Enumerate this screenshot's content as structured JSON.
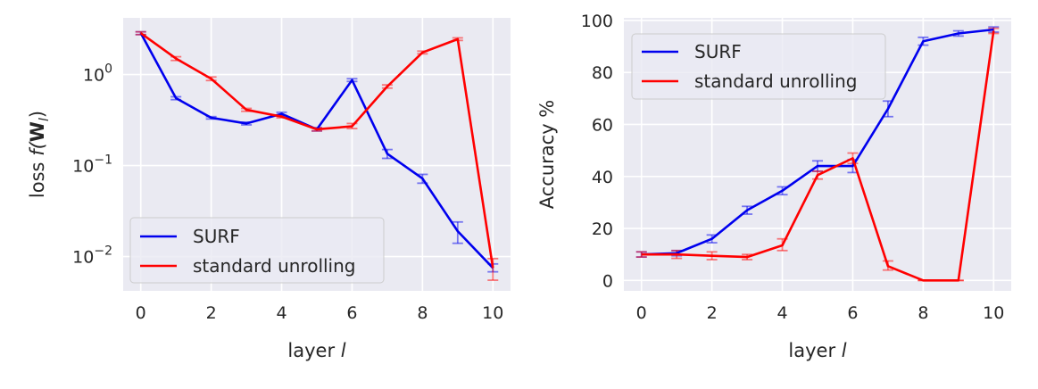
{
  "chart_data": [
    {
      "type": "line",
      "xlabel": "layer",
      "xlabel_var": "l",
      "ylabel": "loss",
      "ylabel_fn": "f(",
      "ylabel_bold": "W",
      "ylabel_sub": "l",
      "ylabel_close": ")",
      "yscale": "log",
      "xlim": [
        -0.5,
        10.5
      ],
      "ylim": [
        0.0042,
        4.2
      ],
      "x_ticks": [
        0,
        2,
        4,
        6,
        8,
        10
      ],
      "x_tick_labels": [
        "0",
        "2",
        "4",
        "6",
        "8",
        "10"
      ],
      "y_ticks": [
        1,
        0.1,
        0.01
      ],
      "y_tick_base": [
        "10",
        "10",
        "10"
      ],
      "y_tick_exp": [
        "0",
        "−1",
        "−2"
      ],
      "grid": true,
      "legend_loc": "lower-left",
      "x": [
        0,
        1,
        2,
        3,
        4,
        5,
        6,
        7,
        8,
        9,
        10
      ],
      "series": [
        {
          "name": "SURF",
          "color": "#0000ee",
          "values": [
            2.85,
            0.55,
            0.335,
            0.29,
            0.37,
            0.25,
            0.87,
            0.135,
            0.072,
            0.019,
            0.0075
          ],
          "err_low": [
            2.75,
            0.53,
            0.325,
            0.28,
            0.355,
            0.24,
            0.84,
            0.12,
            0.064,
            0.014,
            0.0068
          ],
          "err_high": [
            2.95,
            0.57,
            0.345,
            0.3,
            0.385,
            0.26,
            0.9,
            0.15,
            0.08,
            0.024,
            0.0083
          ]
        },
        {
          "name": "standard unrolling",
          "color": "#ff0000",
          "values": [
            2.85,
            1.5,
            0.9,
            0.41,
            0.345,
            0.25,
            0.27,
            0.74,
            1.75,
            2.45,
            0.0075
          ],
          "err_low": [
            2.75,
            1.43,
            0.86,
            0.395,
            0.335,
            0.24,
            0.255,
            0.71,
            1.69,
            2.37,
            0.0055
          ],
          "err_high": [
            2.95,
            1.57,
            0.94,
            0.425,
            0.355,
            0.26,
            0.29,
            0.77,
            1.81,
            2.53,
            0.0095
          ]
        }
      ]
    },
    {
      "type": "line",
      "xlabel": "layer",
      "xlabel_var": "l",
      "ylabel": "Accuracy %",
      "yscale": "linear",
      "xlim": [
        -0.5,
        10.5
      ],
      "ylim": [
        -4,
        101
      ],
      "x_ticks": [
        0,
        2,
        4,
        6,
        8,
        10
      ],
      "x_tick_labels": [
        "0",
        "2",
        "4",
        "6",
        "8",
        "10"
      ],
      "y_ticks": [
        0,
        20,
        40,
        60,
        80,
        100
      ],
      "y_tick_labels": [
        "0",
        "20",
        "40",
        "60",
        "80",
        "100"
      ],
      "grid": true,
      "legend_loc": "upper-left",
      "x": [
        0,
        1,
        2,
        3,
        4,
        5,
        6,
        7,
        8,
        9,
        10
      ],
      "series": [
        {
          "name": "SURF",
          "color": "#0000ee",
          "values": [
            10,
            10.5,
            16,
            27,
            34.5,
            44,
            44,
            66,
            92,
            95,
            96.5
          ],
          "err_low": [
            9,
            9.5,
            14.5,
            25.5,
            33,
            42,
            41.5,
            63,
            90.5,
            94,
            95.5
          ],
          "err_high": [
            11,
            11.5,
            17.5,
            28.5,
            36,
            46,
            46.5,
            69,
            93.5,
            96,
            97.5
          ]
        },
        {
          "name": "standard unrolling",
          "color": "#ff0000",
          "values": [
            10,
            10,
            9.5,
            9,
            13.5,
            40.5,
            47,
            5.5,
            0,
            0,
            96
          ],
          "err_low": [
            9,
            8.5,
            8,
            8,
            11.5,
            39,
            45,
            4,
            0,
            0,
            95
          ],
          "err_high": [
            11,
            11.5,
            11,
            10,
            16,
            42,
            49,
            7.5,
            0,
            0,
            97
          ]
        }
      ]
    }
  ]
}
